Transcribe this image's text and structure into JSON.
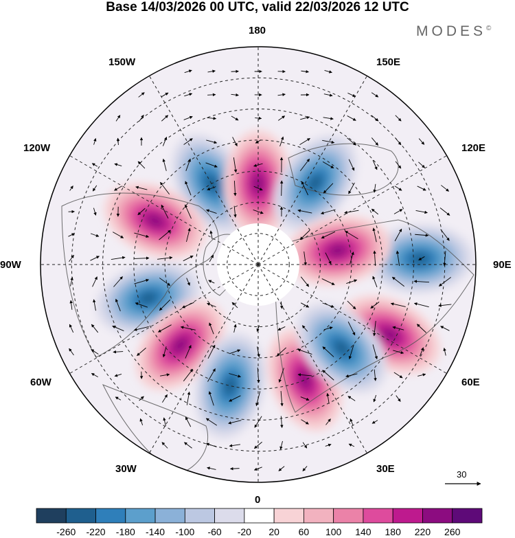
{
  "title": "Base 14/03/2026 00 UTC, valid 22/03/2026 12 UTC",
  "brand": "MODES",
  "brand_mark": "©",
  "lon_labels": {
    "deg_180": "180",
    "deg_150e": "150E",
    "deg_120e": "120E",
    "deg_90e": "90E",
    "deg_60e": "60E",
    "deg_30e": "30E",
    "deg_0": "0",
    "deg_30w": "30W",
    "deg_60w": "60W",
    "deg_90w": "90W",
    "deg_120w": "120W",
    "deg_150w": "150W"
  },
  "vector_scale": "30",
  "colorbar": {
    "ticks": [
      "-260",
      "-220",
      "-180",
      "-140",
      "-100",
      "-60",
      "-20",
      "20",
      "60",
      "100",
      "140",
      "180",
      "220",
      "260"
    ],
    "colors": [
      "#1f3f5e",
      "#1f5f8e",
      "#2f7fba",
      "#5c9fcc",
      "#8bb1d8",
      "#bcc8e2",
      "#dcdceb",
      "#ffffff",
      "#f8d3d6",
      "#f2b2bf",
      "#eb82a8",
      "#de4b9d",
      "#be1a8e",
      "#8c0c80",
      "#5e0a78"
    ]
  },
  "anomaly_centers": [
    {
      "name": "neg-150w",
      "sign": "negative",
      "lon": -150,
      "colat": 30
    },
    {
      "name": "pos-180",
      "sign": "positive",
      "lon": 180,
      "colat": 26
    },
    {
      "name": "neg-150e",
      "sign": "negative",
      "lon": 145,
      "colat": 32
    },
    {
      "name": "pos-115w",
      "sign": "positive",
      "lon": -113,
      "colat": 36
    },
    {
      "name": "neg-75w",
      "sign": "negative",
      "lon": -73,
      "colat": 37
    },
    {
      "name": "pos-45w",
      "sign": "positive",
      "lon": -44,
      "colat": 36
    },
    {
      "name": "neg-15w",
      "sign": "negative",
      "lon": -13,
      "colat": 40
    },
    {
      "name": "pos-20e",
      "sign": "positive",
      "lon": 22,
      "colat": 40
    },
    {
      "name": "pos-60e",
      "sign": "positive",
      "lon": 62,
      "colat": 48
    },
    {
      "name": "neg-90e",
      "sign": "negative",
      "lon": 92,
      "colat": 52
    },
    {
      "name": "pos-110e",
      "sign": "positive",
      "lon": 100,
      "colat": 26
    },
    {
      "name": "neg-45e",
      "sign": "negative",
      "lon": 45,
      "colat": 38
    }
  ]
}
